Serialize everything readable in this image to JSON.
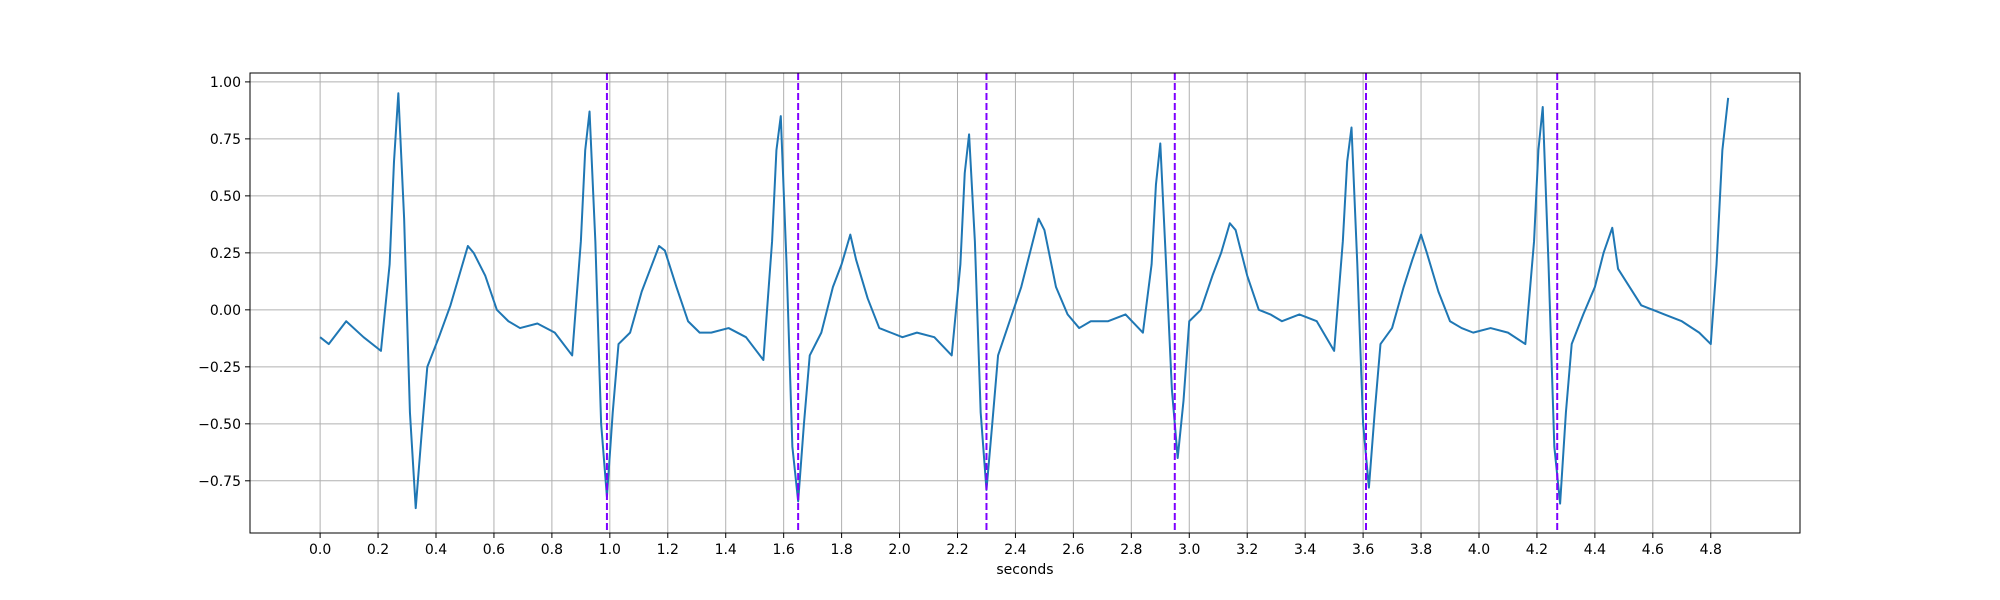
{
  "chart_data": {
    "type": "line",
    "xlabel": "seconds",
    "color": "#1f77b4",
    "grid": true,
    "xlim": [
      -0.242,
      5.108
    ],
    "ylim": [
      -0.979,
      1.039
    ],
    "xticks": [
      {
        "value": 0,
        "label": "0.0"
      },
      0.2,
      0.4,
      0.6,
      0.8,
      {
        "value": 1,
        "label": "1.0"
      },
      1.2,
      1.4,
      1.6,
      1.8,
      {
        "value": 2,
        "label": "2.0"
      },
      2.2,
      2.4,
      2.6,
      2.8,
      {
        "value": 3,
        "label": "3.0"
      },
      3.2,
      3.4,
      3.6,
      3.8,
      {
        "value": 4,
        "label": "4.0"
      },
      4.2,
      4.4,
      4.6,
      4.8
    ],
    "yticks": [
      {
        "value": -0.75,
        "label": "−0.75"
      },
      {
        "value": -0.5,
        "label": "−0.50"
      },
      {
        "value": -0.25,
        "label": "−0.25"
      },
      {
        "value": 0,
        "label": "0.00"
      },
      {
        "value": 0.25,
        "label": "0.25"
      },
      {
        "value": 0.5,
        "label": "0.50"
      },
      {
        "value": 0.75,
        "label": "0.75"
      },
      {
        "value": 1,
        "label": "1.00"
      }
    ],
    "x": [
      0,
      0.03,
      0.09,
      0.15,
      0.21,
      0.24,
      0.255,
      0.27,
      0.29,
      0.31,
      0.33,
      0.35,
      0.37,
      0.41,
      0.45,
      0.48,
      0.51,
      0.53,
      0.57,
      0.61,
      0.65,
      0.69,
      0.75,
      0.81,
      0.87,
      0.9,
      0.915,
      0.93,
      0.95,
      0.97,
      0.99,
      1.01,
      1.03,
      1.07,
      1.11,
      1.14,
      1.17,
      1.19,
      1.23,
      1.27,
      1.31,
      1.35,
      1.41,
      1.47,
      1.53,
      1.56,
      1.575,
      1.59,
      1.61,
      1.63,
      1.65,
      1.67,
      1.69,
      1.73,
      1.77,
      1.8,
      1.83,
      1.85,
      1.89,
      1.93,
      1.97,
      2.01,
      2.06,
      2.12,
      2.18,
      2.21,
      2.225,
      2.24,
      2.26,
      2.28,
      2.3,
      2.32,
      2.34,
      2.38,
      2.42,
      2.45,
      2.48,
      2.5,
      2.54,
      2.58,
      2.62,
      2.66,
      2.72,
      2.78,
      2.84,
      2.87,
      2.885,
      2.9,
      2.92,
      2.94,
      2.96,
      2.98,
      3.0,
      3.04,
      3.08,
      3.11,
      3.14,
      3.16,
      3.2,
      3.24,
      3.28,
      3.32,
      3.38,
      3.44,
      3.5,
      3.53,
      3.545,
      3.56,
      3.58,
      3.6,
      3.62,
      3.64,
      3.66,
      3.7,
      3.74,
      3.77,
      3.8,
      3.82,
      3.86,
      3.9,
      3.94,
      3.98,
      4.04,
      4.1,
      4.16,
      4.19,
      4.205,
      4.22,
      4.24,
      4.26,
      4.28,
      4.3,
      4.32,
      4.36,
      4.4,
      4.43,
      4.46,
      4.48,
      4.52,
      4.56,
      4.6,
      4.64,
      4.7,
      4.76,
      4.8,
      4.82,
      4.84,
      4.86
    ],
    "values": [
      -0.12,
      -0.15,
      -0.05,
      -0.12,
      -0.18,
      0.2,
      0.65,
      0.95,
      0.4,
      -0.45,
      -0.87,
      -0.55,
      -0.25,
      -0.12,
      0.02,
      0.15,
      0.28,
      0.25,
      0.15,
      0.0,
      -0.05,
      -0.08,
      -0.06,
      -0.1,
      -0.2,
      0.3,
      0.7,
      0.87,
      0.3,
      -0.5,
      -0.82,
      -0.45,
      -0.15,
      -0.1,
      0.08,
      0.18,
      0.28,
      0.26,
      0.1,
      -0.05,
      -0.1,
      -0.1,
      -0.08,
      -0.12,
      -0.22,
      0.3,
      0.7,
      0.85,
      0.2,
      -0.6,
      -0.84,
      -0.5,
      -0.2,
      -0.1,
      0.1,
      0.2,
      0.33,
      0.22,
      0.05,
      -0.08,
      -0.1,
      -0.12,
      -0.1,
      -0.12,
      -0.2,
      0.2,
      0.6,
      0.77,
      0.3,
      -0.45,
      -0.79,
      -0.5,
      -0.2,
      -0.05,
      0.1,
      0.25,
      0.4,
      0.35,
      0.1,
      -0.02,
      -0.08,
      -0.05,
      -0.05,
      -0.02,
      -0.1,
      0.2,
      0.55,
      0.73,
      0.2,
      -0.35,
      -0.65,
      -0.4,
      -0.05,
      0.0,
      0.15,
      0.25,
      0.38,
      0.35,
      0.15,
      0.0,
      -0.02,
      -0.05,
      -0.02,
      -0.05,
      -0.18,
      0.3,
      0.65,
      0.8,
      0.2,
      -0.5,
      -0.78,
      -0.45,
      -0.15,
      -0.08,
      0.1,
      0.22,
      0.33,
      0.25,
      0.08,
      -0.05,
      -0.08,
      -0.1,
      -0.08,
      -0.1,
      -0.15,
      0.3,
      0.7,
      0.89,
      0.2,
      -0.6,
      -0.85,
      -0.45,
      -0.15,
      -0.02,
      0.1,
      0.25,
      0.36,
      0.18,
      0.1,
      0.02,
      0.0,
      -0.02,
      -0.05,
      -0.1,
      -0.15,
      0.2,
      0.7,
      0.93
    ],
    "vlines": {
      "x": [
        0.99,
        1.65,
        2.3,
        2.95,
        3.61,
        4.27
      ],
      "color": "#7f00ff",
      "dashed": true
    }
  }
}
